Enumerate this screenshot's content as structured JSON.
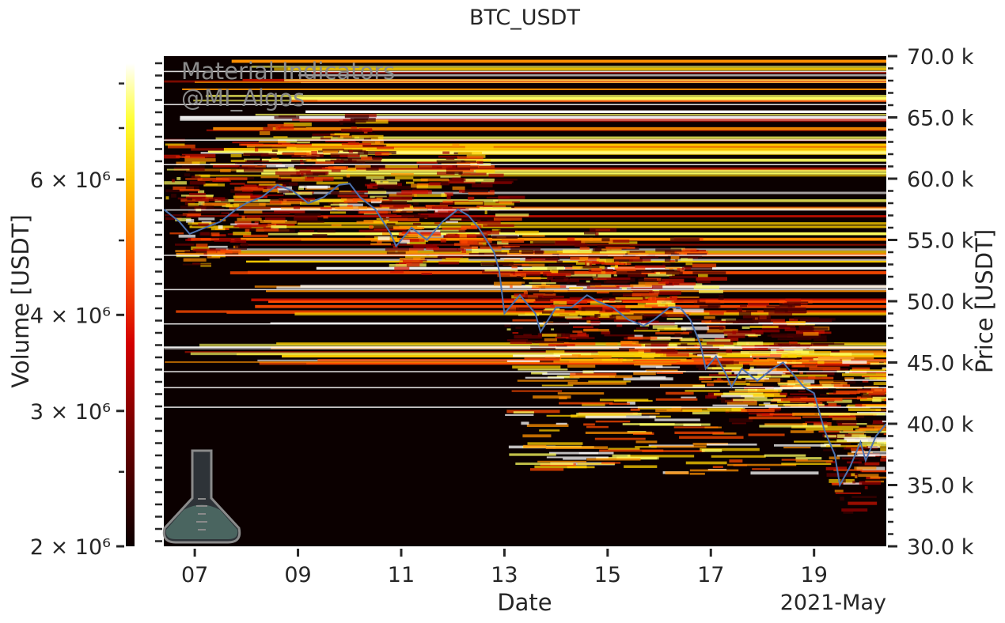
{
  "chart_data": {
    "type": "heatmap",
    "title": "BTC_USDT",
    "xlabel": "Date",
    "xlabel_secondary": "2021-May",
    "ylabel_right": "Price [USDT]",
    "colorbar_label": "Volume [USDT]",
    "watermark": [
      "Material Indicators",
      "@MI_Algos"
    ],
    "x_range_days": [
      6.4,
      20.4
    ],
    "x_ticks": [
      "07",
      "09",
      "11",
      "13",
      "15",
      "17",
      "19"
    ],
    "x_tick_values": [
      7,
      9,
      11,
      13,
      15,
      17,
      19
    ],
    "y_range": [
      30000,
      70000
    ],
    "y_ticks": [
      "30.0 k",
      "35.0 k",
      "40.0 k",
      "45.0 k",
      "50.0 k",
      "55.0 k",
      "60.0 k",
      "65.0 k",
      "70.0 k"
    ],
    "y_tick_values": [
      30000,
      35000,
      40000,
      45000,
      50000,
      55000,
      60000,
      65000,
      70000
    ],
    "colorbar_scale": "log",
    "colorbar_range": [
      2000000,
      8500000
    ],
    "colorbar_ticks": [
      "2 × 10⁶",
      "3 × 10⁶",
      "4 × 10⁶",
      "6 × 10⁶"
    ],
    "colorbar_tick_values": [
      2000000,
      3000000,
      4000000,
      6000000
    ],
    "colormap": "hot",
    "price_series": {
      "name": "",
      "color": "#4c72b0",
      "x": [
        6.4,
        6.7,
        6.9,
        7.2,
        7.5,
        7.8,
        8.0,
        8.3,
        8.6,
        8.9,
        9.2,
        9.5,
        9.8,
        10.0,
        10.2,
        10.5,
        10.8,
        10.9,
        11.2,
        11.5,
        11.8,
        12.1,
        12.3,
        12.5,
        12.8,
        12.9,
        13.0,
        13.3,
        13.6,
        13.7,
        14.0,
        14.3,
        14.6,
        14.8,
        15.1,
        15.4,
        15.7,
        15.9,
        16.2,
        16.4,
        16.6,
        16.8,
        16.9,
        17.1,
        17.3,
        17.4,
        17.6,
        17.9,
        18.2,
        18.4,
        18.6,
        18.8,
        19.0,
        19.2,
        19.4,
        19.5,
        19.7,
        19.9,
        20.0,
        20.2,
        20.4
      ],
      "y": [
        57500,
        56500,
        55500,
        56000,
        56500,
        57500,
        58000,
        58500,
        59500,
        59000,
        58000,
        58500,
        59500,
        59600,
        58500,
        57500,
        55500,
        54500,
        56000,
        55000,
        56500,
        57500,
        57000,
        56000,
        54000,
        52500,
        49000,
        50500,
        49000,
        47500,
        49500,
        49500,
        50500,
        50000,
        49500,
        48500,
        48000,
        48500,
        49500,
        49500,
        48500,
        46500,
        44500,
        45500,
        44000,
        43000,
        44500,
        43500,
        44500,
        45000,
        44000,
        43000,
        42500,
        39500,
        37500,
        35000,
        36500,
        38500,
        37000,
        39000,
        40000
      ]
    }
  }
}
